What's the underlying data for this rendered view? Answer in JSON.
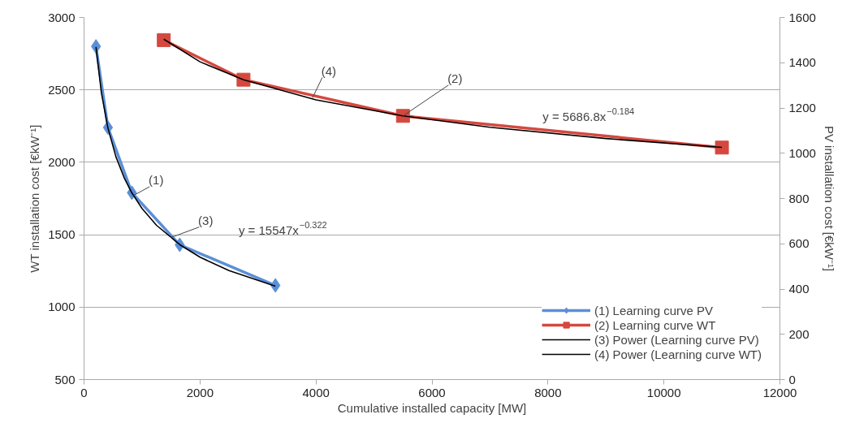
{
  "chart_data": {
    "type": "line",
    "xlabel": "Cumulative installed capacity [MW]",
    "ylabel": "WT installation cost [€kW⁻¹]",
    "y2label": "PV installation cost [€kW⁻¹]",
    "xlim": [
      0,
      12000
    ],
    "xticks": [
      0,
      2000,
      4000,
      6000,
      8000,
      10000,
      12000
    ],
    "ylim": [
      500,
      3000
    ],
    "yticks": [
      500,
      1000,
      1500,
      2000,
      2500,
      3000
    ],
    "y2lim": [
      0,
      1600
    ],
    "y2ticks": [
      0,
      200,
      400,
      600,
      800,
      1000,
      1200,
      1400,
      1600
    ],
    "grid": "y",
    "legend": "bottom right",
    "line_style": "solid",
    "series": [
      {
        "name": "(1) Learning curve PV",
        "marker": "diamond",
        "color": "#5b8fd8",
        "x": [
          206,
          412,
          825,
          1650,
          3300
        ],
        "values": [
          2800,
          2240,
          1790,
          1430,
          1150
        ]
      },
      {
        "name": "(2) Learning curve WT",
        "marker": "square",
        "axis": "y2",
        "color": "#d5483f",
        "x": [
          1375,
          2750,
          5500,
          11000
        ],
        "values": [
          1500,
          1325,
          1165,
          1025
        ]
      },
      {
        "name": "(3) Power (Learning curve PV)",
        "marker": "none",
        "color": "#000000",
        "x": [
          206,
          300,
          412,
          550,
          700,
          825,
          1000,
          1250,
          1650,
          2000,
          2500,
          3300
        ],
        "values": [
          2796,
          2478,
          2237,
          2038,
          1886,
          1789,
          1681,
          1565,
          1432,
          1345,
          1252,
          1145
        ]
      },
      {
        "name": "(4) Power (Learning curve WT)",
        "marker": "none",
        "axis": "y2",
        "color": "#000000",
        "x": [
          1375,
          2000,
          2750,
          4000,
          5500,
          7000,
          9000,
          11000
        ],
        "values": [
          1504,
          1404,
          1325,
          1236,
          1165,
          1115,
          1065,
          1026
        ]
      }
    ],
    "annotations": [
      {
        "text": "(1)",
        "x": 850,
        "y": 1770
      },
      {
        "text": "(3)",
        "x": 1495,
        "y": 1480
      },
      {
        "text": "(4)",
        "x": 3940,
        "y": 2445
      },
      {
        "text": "(2)",
        "x": 5500,
        "y": 2320
      },
      "y = 15547x$^{−0.322}$",
      "y = 5686.8x$^{−0.184}$"
    ]
  }
}
